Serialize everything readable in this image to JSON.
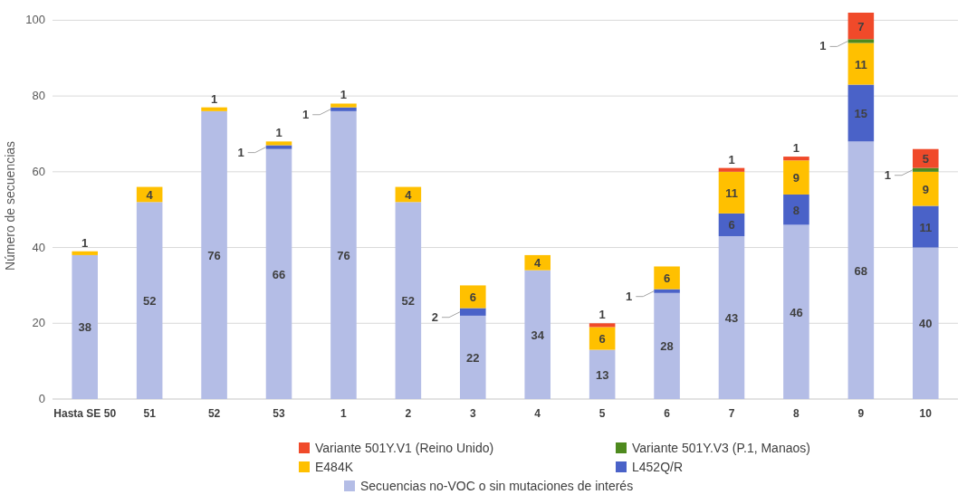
{
  "chart_data": {
    "type": "bar",
    "stacked": true,
    "ylabel": "Número de secuencias",
    "categories": [
      "Hasta SE 50",
      "51",
      "52",
      "53",
      "1",
      "2",
      "3",
      "4",
      "5",
      "6",
      "7",
      "8",
      "9",
      "10"
    ],
    "series": [
      {
        "name": "Secuencias no-VOC o sin mutaciones de interés",
        "color": "#b4bde6",
        "values": [
          38,
          52,
          76,
          66,
          76,
          52,
          22,
          34,
          13,
          28,
          43,
          46,
          68,
          40
        ]
      },
      {
        "name": "L452Q/R",
        "color": "#4a62c8",
        "values": [
          null,
          null,
          null,
          1,
          1,
          null,
          2,
          null,
          null,
          1,
          6,
          8,
          15,
          11
        ]
      },
      {
        "name": "E484K",
        "color": "#ffc000",
        "values": [
          1,
          4,
          1,
          1,
          1,
          4,
          6,
          4,
          6,
          6,
          11,
          9,
          11,
          9
        ]
      },
      {
        "name": "Variante 501Y.V3 (P.1, Manaos)",
        "color": "#4e8a1e",
        "values": [
          null,
          null,
          null,
          null,
          null,
          null,
          null,
          null,
          null,
          null,
          null,
          null,
          1,
          1
        ]
      },
      {
        "name": "Variante 501Y.V1 (Reino Unido)",
        "color": "#f04a2a",
        "values": [
          null,
          null,
          null,
          null,
          null,
          null,
          null,
          null,
          1,
          null,
          1,
          1,
          7,
          5
        ]
      }
    ],
    "ylim": [
      0,
      102
    ],
    "yticks": [
      0,
      20,
      40,
      60,
      80,
      100
    ],
    "grid": "y",
    "legend": "bottom",
    "data_labels": true
  }
}
